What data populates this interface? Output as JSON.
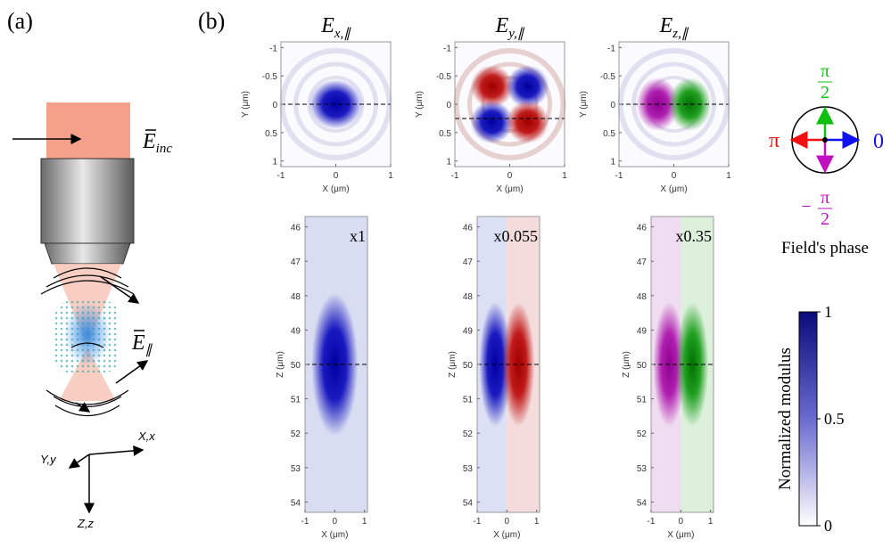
{
  "panel_a": {
    "label": "(a)",
    "incident_field": {
      "symbol": "E",
      "subscript": "inc"
    },
    "parallel_field": {
      "symbol": "E",
      "subscript": "∥"
    },
    "axes": {
      "x": "X,x",
      "y": "Y,y",
      "z": "Z,z"
    }
  },
  "panel_b": {
    "label": "(b)",
    "columns": [
      {
        "symbol": "E",
        "subscript": "x,∥",
        "scale": "x1"
      },
      {
        "symbol": "E",
        "subscript": "y,∥",
        "scale": "x0.055"
      },
      {
        "symbol": "E",
        "subscript": "z,∥",
        "scale": "x0.35"
      }
    ],
    "top_maps": {
      "xlabel": "X (μm)",
      "ylabel": "Y (μm)",
      "xticks": [
        -1,
        0,
        1
      ],
      "yticks": [
        -1,
        -0.5,
        0,
        0.5,
        1
      ],
      "xlim": [
        -1,
        1
      ],
      "ylim": [
        -1.1,
        1.1
      ]
    },
    "bottom_maps": {
      "xlabel": "X (μm)",
      "ylabel": "Z (μm)",
      "xticks": [
        -1,
        0,
        1
      ],
      "yticks": [
        46,
        47,
        48,
        49,
        50,
        51,
        52,
        53,
        54
      ],
      "xlim": [
        -1,
        1.1
      ],
      "ylim": [
        45.7,
        54.3
      ]
    },
    "phase_legend": {
      "up": {
        "numerator": "π",
        "denominator": "2"
      },
      "left": "π",
      "right": "0",
      "down": {
        "sign": "−",
        "numerator": "π",
        "denominator": "2"
      },
      "caption": "Field's phase"
    },
    "colorbar": {
      "label": "Normalized modulus",
      "ticks": [
        0,
        0.5,
        1
      ],
      "lim": [
        0,
        1
      ]
    }
  }
}
